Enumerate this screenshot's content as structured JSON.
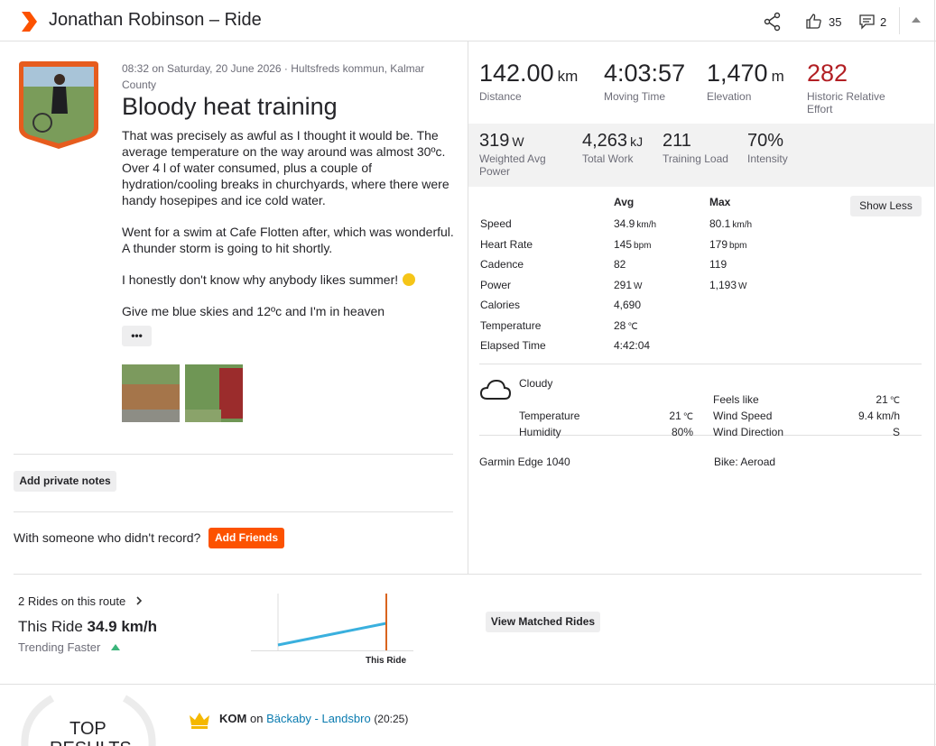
{
  "header": {
    "title": "Jonathan Robinson – Ride",
    "kudos": "35",
    "comments": "2"
  },
  "activity": {
    "meta": "08:32 on Saturday, 20 June 2026 · Hultsfreds kommun, Kalmar County",
    "title": "Bloody heat training",
    "description": [
      "That was precisely as awful as I thought it would be. The average temperature on the way around was almost 30ºc. Over 4 l of water consumed, plus a couple of hydration/cooling breaks in churchyards, where there were handy hosepipes and ice cold water.",
      "Went for a swim at Cafe Flotten after, which was wonderful. A thunder storm is going to hit shortly.",
      "I honestly don't know why anybody likes summer!",
      "Give me blue skies and 12ºc and I'm in heaven"
    ],
    "more": "•••",
    "private_notes": "Add private notes",
    "with_someone": "With someone who didn't record?",
    "add_friends": "Add Friends"
  },
  "stats": {
    "primary": [
      {
        "value": "142.00",
        "unit": "km",
        "label": "Distance"
      },
      {
        "value": "4:03:57",
        "label": "Moving Time"
      },
      {
        "value": "1,470",
        "unit": "m",
        "label": "Elevation"
      },
      {
        "value": "282",
        "label": "Historic Relative Effort"
      }
    ],
    "secondary": [
      {
        "value": "319",
        "unit": "W",
        "label": "Weighted Avg Power"
      },
      {
        "value": "4,263",
        "unit": "kJ",
        "label": "Total Work"
      },
      {
        "value": "211",
        "label": "Training Load"
      },
      {
        "value": "70%",
        "label": "Intensity"
      }
    ]
  },
  "details": {
    "avg_header": "Avg",
    "max_header": "Max",
    "toggle": "Show Less",
    "rows": [
      {
        "label": "Speed",
        "avg": "34.9",
        "avg_unit": "km/h",
        "max": "80.1",
        "max_unit": "km/h"
      },
      {
        "label": "Heart Rate",
        "avg": "145",
        "avg_unit": "bpm",
        "max": "179",
        "max_unit": "bpm"
      },
      {
        "label": "Cadence",
        "avg": "82",
        "max": "119"
      },
      {
        "label": "Power",
        "avg": "291",
        "avg_unit": "W",
        "max": "1,193",
        "max_unit": "W"
      },
      {
        "label": "Calories",
        "avg": "4,690"
      },
      {
        "label": "Temperature",
        "avg": "28",
        "avg_unit": "℃"
      },
      {
        "label": "Elapsed Time",
        "avg": "4:42:04"
      }
    ]
  },
  "weather": {
    "condition": "Cloudy",
    "left": [
      {
        "label": "Temperature",
        "value": "21",
        "unit": "℃"
      },
      {
        "label": "Humidity",
        "value": "80%"
      }
    ],
    "right": [
      {
        "label": "Feels like",
        "value": "21",
        "unit": "℃"
      },
      {
        "label": "Wind Speed",
        "value": "9.4 km/h"
      },
      {
        "label": "Wind Direction",
        "value": "S"
      }
    ]
  },
  "gear": {
    "device": "Garmin Edge 1040",
    "bike": "Bike: Aeroad"
  },
  "route": {
    "count": "2 Rides on this route",
    "this_ride_label": "This Ride",
    "this_ride_value": "34.9 km/h",
    "trend": "Trending Faster",
    "chart_label": "This Ride",
    "button": "View Matched Rides"
  },
  "results": {
    "badge_line1": "TOP",
    "badge_line2": "RESULTS",
    "items": [
      {
        "achievement": "KOM",
        "on": "on",
        "segment": "Bäckaby - Landsbro",
        "time": "(20:25)"
      }
    ]
  }
}
